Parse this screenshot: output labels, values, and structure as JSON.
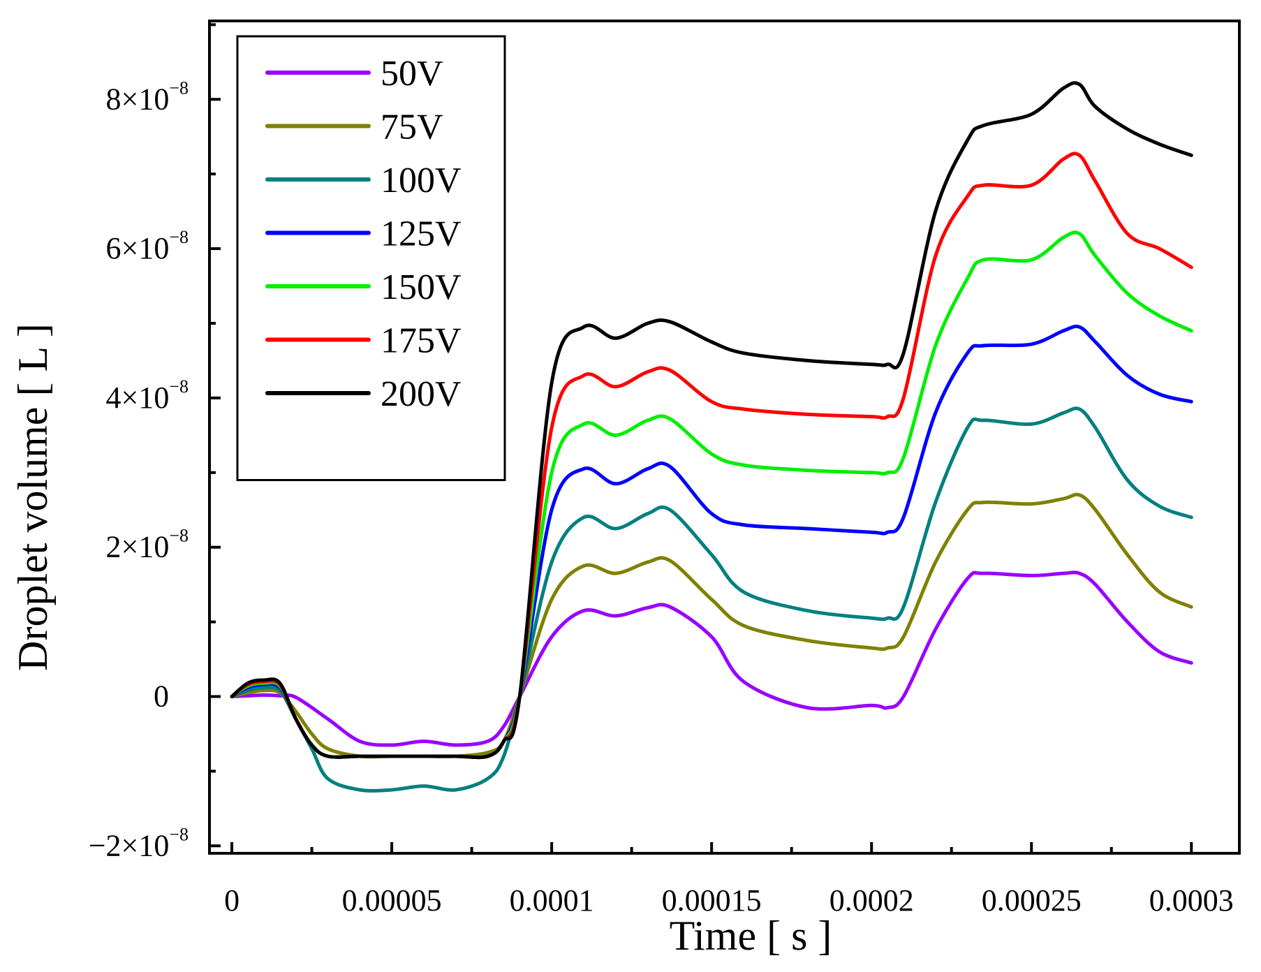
{
  "chart_data": {
    "type": "line",
    "title": "",
    "xlabel": "Time [ s ]",
    "ylabel": "Droplet volume [ L ]",
    "xlim": [
      -7e-06,
      0.000315
    ],
    "ylim": [
      -2.1e-08,
      9.05e-08
    ],
    "xticks": [
      {
        "value": 0,
        "label": "0"
      },
      {
        "value": 5e-05,
        "label": "0.00005"
      },
      {
        "value": 0.0001,
        "label": "0.0001"
      },
      {
        "value": 0.00015,
        "label": "0.00015"
      },
      {
        "value": 0.0002,
        "label": "0.0002"
      },
      {
        "value": 0.00025,
        "label": "0.00025"
      },
      {
        "value": 0.0003,
        "label": "0.0003"
      }
    ],
    "yticks": [
      {
        "value": -2e-08,
        "mantissa": "−2×10",
        "exponent": "−8"
      },
      {
        "value": 0,
        "mantissa": "0",
        "exponent": ""
      },
      {
        "value": 2e-08,
        "mantissa": "2×10",
        "exponent": "−8"
      },
      {
        "value": 4e-08,
        "mantissa": "4×10",
        "exponent": "−8"
      },
      {
        "value": 6e-08,
        "mantissa": "6×10",
        "exponent": "−8"
      },
      {
        "value": 8e-08,
        "mantissa": "8×10",
        "exponent": "−8"
      }
    ],
    "x_minor_step": 2.5e-05,
    "y_minor_step": 1e-08,
    "grid": false,
    "legend_position": "top-left",
    "series": [
      {
        "name": "50V",
        "color": "#9900ff",
        "x": [
          0,
          5e-06,
          1e-05,
          1.5e-05,
          2e-05,
          3e-05,
          4e-05,
          5e-05,
          6e-05,
          7e-05,
          8e-05,
          8.5e-05,
          9e-05,
          0.0001,
          0.00011,
          0.00012,
          0.00013,
          0.000137,
          0.00015,
          0.00016,
          0.00018,
          0.0002,
          0.000205,
          0.00021,
          0.00022,
          0.00023,
          0.000235,
          0.00025,
          0.00026,
          0.000265,
          0.00027,
          0.00028,
          0.00029,
          0.0003
        ],
        "y": [
          0,
          1e-10,
          2e-10,
          1e-10,
          -1e-10,
          -3e-09,
          -6e-09,
          -6.5e-09,
          -6e-09,
          -6.5e-09,
          -6e-09,
          -4e-09,
          0,
          8e-09,
          1.15e-08,
          1.08e-08,
          1.19e-08,
          1.2e-08,
          8e-09,
          2e-09,
          -1.5e-09,
          -1.2e-09,
          -1.5e-09,
          0,
          9e-09,
          1.58e-08,
          1.65e-08,
          1.62e-08,
          1.65e-08,
          1.65e-08,
          1.5e-08,
          1e-08,
          6e-09,
          4.5e-09
        ]
      },
      {
        "name": "75V",
        "color": "#808000",
        "x": [
          0,
          5e-06,
          1e-05,
          1.5e-05,
          2e-05,
          2.5e-05,
          3e-05,
          4e-05,
          5e-05,
          6e-05,
          7e-05,
          8e-05,
          8.5e-05,
          9e-05,
          0.0001,
          0.00011,
          0.00012,
          0.00013,
          0.000137,
          0.00015,
          0.00016,
          0.00018,
          0.0002,
          0.000205,
          0.00021,
          0.00022,
          0.00023,
          0.000235,
          0.00025,
          0.00026,
          0.000265,
          0.00027,
          0.00028,
          0.00029,
          0.0003
        ],
        "y": [
          0,
          5e-10,
          8e-10,
          5e-10,
          -2e-09,
          -5e-09,
          -7e-09,
          -8e-09,
          -8e-09,
          -8e-09,
          -8e-09,
          -7.5e-09,
          -6e-09,
          0,
          1.3e-08,
          1.75e-08,
          1.65e-08,
          1.8e-08,
          1.82e-08,
          1.3e-08,
          9.5e-09,
          7.5e-09,
          6.5e-09,
          6.5e-09,
          8e-09,
          1.8e-08,
          2.5e-08,
          2.6e-08,
          2.58e-08,
          2.65e-08,
          2.7e-08,
          2.5e-08,
          1.9e-08,
          1.4e-08,
          1.2e-08
        ]
      },
      {
        "name": "100V",
        "color": "#008080",
        "x": [
          0,
          5e-06,
          1e-05,
          1.5e-05,
          2e-05,
          2.5e-05,
          3e-05,
          4e-05,
          5e-05,
          6e-05,
          7e-05,
          8e-05,
          8.5e-05,
          9e-05,
          0.0001,
          0.00011,
          0.00012,
          0.00013,
          0.000137,
          0.00015,
          0.00016,
          0.00018,
          0.0002,
          0.000205,
          0.00021,
          0.00022,
          0.00023,
          0.000235,
          0.00025,
          0.00026,
          0.000265,
          0.00027,
          0.00028,
          0.00029,
          0.0003
        ],
        "y": [
          0,
          8e-10,
          1.2e-09,
          8e-10,
          -3e-09,
          -7e-09,
          -1.1e-08,
          -1.25e-08,
          -1.25e-08,
          -1.2e-08,
          -1.25e-08,
          -1.1e-08,
          -8e-09,
          0,
          1.8e-08,
          2.4e-08,
          2.25e-08,
          2.45e-08,
          2.5e-08,
          1.9e-08,
          1.4e-08,
          1.15e-08,
          1.05e-08,
          1.05e-08,
          1.2e-08,
          2.6e-08,
          3.6e-08,
          3.7e-08,
          3.65e-08,
          3.8e-08,
          3.85e-08,
          3.6e-08,
          2.9e-08,
          2.55e-08,
          2.4e-08
        ]
      },
      {
        "name": "125V",
        "color": "#0000ff",
        "x": [
          0,
          5e-06,
          1e-05,
          1.5e-05,
          2e-05,
          2.5e-05,
          3e-05,
          4e-05,
          5e-05,
          6e-05,
          7e-05,
          8e-05,
          8.5e-05,
          9e-05,
          0.0001,
          0.00011,
          0.00012,
          0.00013,
          0.000137,
          0.00015,
          0.00016,
          0.00018,
          0.0002,
          0.000205,
          0.00021,
          0.00022,
          0.00023,
          0.000235,
          0.00025,
          0.00026,
          0.000265,
          0.00027,
          0.00028,
          0.00029,
          0.0003
        ],
        "y": [
          0,
          1.2e-09,
          1.6e-09,
          1.2e-09,
          -3e-09,
          -6.5e-09,
          -8e-09,
          -8e-09,
          -8e-09,
          -8e-09,
          -8e-09,
          -8e-09,
          -6e-09,
          0,
          2.5e-08,
          3.05e-08,
          2.85e-08,
          3.05e-08,
          3.08e-08,
          2.45e-08,
          2.3e-08,
          2.25e-08,
          2.2e-08,
          2.2e-08,
          2.4e-08,
          3.8e-08,
          4.6e-08,
          4.7e-08,
          4.72e-08,
          4.9e-08,
          4.95e-08,
          4.75e-08,
          4.3e-08,
          4.05e-08,
          3.95e-08
        ]
      },
      {
        "name": "150V",
        "color": "#00ee00",
        "x": [
          0,
          5e-06,
          1e-05,
          1.5e-05,
          2e-05,
          2.5e-05,
          3e-05,
          4e-05,
          5e-05,
          6e-05,
          7e-05,
          8e-05,
          8.5e-05,
          9e-05,
          0.0001,
          0.00011,
          0.00012,
          0.00013,
          0.000137,
          0.00015,
          0.00016,
          0.00018,
          0.0002,
          0.000205,
          0.00021,
          0.00022,
          0.00023,
          0.000235,
          0.00025,
          0.00026,
          0.000265,
          0.00027,
          0.00028,
          0.00029,
          0.0003
        ],
        "y": [
          0,
          1.4e-09,
          1.8e-09,
          1.4e-09,
          -3e-09,
          -6.5e-09,
          -8e-09,
          -8e-09,
          -8e-09,
          -8e-09,
          -8e-09,
          -8e-09,
          -6e-09,
          0,
          3e-08,
          3.65e-08,
          3.5e-08,
          3.7e-08,
          3.72e-08,
          3.25e-08,
          3.1e-08,
          3.03e-08,
          3e-08,
          3e-08,
          3.2e-08,
          4.7e-08,
          5.6e-08,
          5.85e-08,
          5.85e-08,
          6.15e-08,
          6.2e-08,
          5.9e-08,
          5.4e-08,
          5.1e-08,
          4.9e-08
        ]
      },
      {
        "name": "175V",
        "color": "#ff0000",
        "x": [
          0,
          5e-06,
          1e-05,
          1.5e-05,
          2e-05,
          2.5e-05,
          3e-05,
          4e-05,
          5e-05,
          6e-05,
          7e-05,
          8e-05,
          8.5e-05,
          9e-05,
          0.0001,
          0.00011,
          0.00012,
          0.00013,
          0.000137,
          0.00015,
          0.00016,
          0.00018,
          0.0002,
          0.000205,
          0.00021,
          0.00022,
          0.00023,
          0.000235,
          0.00025,
          0.00026,
          0.000265,
          0.00027,
          0.00028,
          0.00029,
          0.0003
        ],
        "y": [
          0,
          1.6e-09,
          2e-09,
          1.6e-09,
          -3e-09,
          -6.5e-09,
          -8e-09,
          -8e-09,
          -8e-09,
          -8e-09,
          -8e-09,
          -8e-09,
          -6e-09,
          0,
          3.6e-08,
          4.3e-08,
          4.15e-08,
          4.35e-08,
          4.37e-08,
          3.95e-08,
          3.85e-08,
          3.78e-08,
          3.75e-08,
          3.75e-08,
          4e-08,
          5.9e-08,
          6.7e-08,
          6.85e-08,
          6.85e-08,
          7.2e-08,
          7.25e-08,
          6.9e-08,
          6.2e-08,
          6e-08,
          5.75e-08
        ]
      },
      {
        "name": "200V",
        "color": "#000000",
        "x": [
          0,
          5e-06,
          1e-05,
          1.5e-05,
          2e-05,
          2.5e-05,
          3e-05,
          4e-05,
          5e-05,
          6e-05,
          7e-05,
          8e-05,
          8.5e-05,
          9e-05,
          0.0001,
          0.00011,
          0.00012,
          0.00013,
          0.000137,
          0.00015,
          0.00016,
          0.00018,
          0.0002,
          0.000205,
          0.00021,
          0.00022,
          0.00023,
          0.000235,
          0.00025,
          0.00026,
          0.000265,
          0.00027,
          0.00028,
          0.00029,
          0.0003
        ],
        "y": [
          0,
          1.8e-09,
          2.2e-09,
          1.8e-09,
          -3e-09,
          -6.5e-09,
          -8e-09,
          -8e-09,
          -8e-09,
          -8e-09,
          -8e-09,
          -8e-09,
          -6e-09,
          0,
          4.2e-08,
          4.95e-08,
          4.8e-08,
          5e-08,
          5.02e-08,
          4.75e-08,
          4.6e-08,
          4.5e-08,
          4.45e-08,
          4.45e-08,
          4.6e-08,
          6.5e-08,
          7.45e-08,
          7.65e-08,
          7.8e-08,
          8.15e-08,
          8.2e-08,
          7.9e-08,
          7.6e-08,
          7.4e-08,
          7.25e-08
        ]
      }
    ]
  }
}
